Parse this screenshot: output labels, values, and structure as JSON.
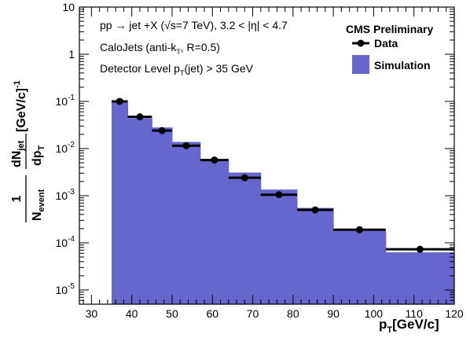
{
  "chart_data": {
    "type": "bar",
    "title": "",
    "xlabel": "p_T[GeV/c]",
    "ylabel": "1/N_event dN_jet/dp_T [GeV/c]^-1",
    "y_scale": "log",
    "xlim": [
      27,
      120
    ],
    "ylim": [
      5e-06,
      10
    ],
    "x_tick_labels": [
      "30",
      "40",
      "50",
      "60",
      "70",
      "80",
      "90",
      "100",
      "110",
      "120"
    ],
    "y_tick_labels": [
      {
        "base": "10",
        "exp": "-5"
      },
      {
        "base": "10",
        "exp": "-4"
      },
      {
        "base": "10",
        "exp": "-3"
      },
      {
        "base": "10",
        "exp": "-2"
      },
      {
        "base": "10",
        "exp": "-1"
      },
      {
        "base": "1",
        "exp": ""
      },
      {
        "base": "10",
        "exp": ""
      }
    ],
    "annotations": {
      "process_a": "pp → jet +X (",
      "process_b": "s=7 TeV), 3.2 < |η| < 4.7",
      "calojets_a": "CaloJets (anti-k",
      "calojets_sub": "T",
      "calojets_b": ", R=0.5)",
      "detector_a": "Detector Level p",
      "detector_sub": "T",
      "detector_b": "(jet) > 35 GeV",
      "experiment": "CMS Preliminary"
    },
    "legend": {
      "position": "top-right",
      "entries": [
        {
          "name": "Data",
          "kind": "marker"
        },
        {
          "name": "Simulation",
          "kind": "fill"
        }
      ]
    },
    "colors": {
      "simulation": "#6666cc",
      "data": "#000000"
    },
    "bin_edges": [
      35,
      39,
      45,
      50,
      57,
      64,
      72,
      81,
      90,
      103,
      120
    ],
    "series": [
      {
        "name": "Simulation",
        "values": [
          0.095,
          0.044,
          0.028,
          0.0138,
          0.0059,
          0.0031,
          0.00135,
          0.00055,
          0.00018,
          6.3e-05
        ]
      },
      {
        "name": "Data",
        "x": [
          37,
          42,
          47.5,
          53.5,
          60.5,
          68,
          76.5,
          85.5,
          96.5,
          111.5
        ],
        "values": [
          0.1,
          0.047,
          0.024,
          0.0115,
          0.0057,
          0.0024,
          0.00105,
          0.0005,
          0.00019,
          7.3e-05
        ],
        "xerr_low": [
          2,
          3,
          2.5,
          3.5,
          3.5,
          4,
          4.5,
          4.5,
          6.5,
          8.5
        ],
        "xerr_high": [
          2,
          3,
          2.5,
          3.5,
          3.5,
          4,
          4.5,
          4.5,
          6.5,
          8.5
        ]
      }
    ]
  }
}
